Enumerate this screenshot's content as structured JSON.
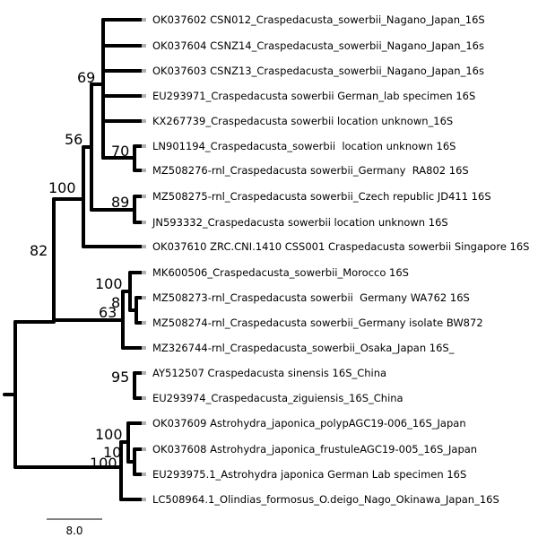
{
  "tree": {
    "leaves": [
      "OK037602 CSN012_Craspedacusta_sowerbii_Nagano_Japan_16S",
      "OK037604 CSNZ14_Craspedacusta_sowerbii_Nagano_Japan_16s",
      "OK037603 CSNZ13_Craspedacusta_sowerbii_Nagano_Japan_16s",
      "EU293971_Craspedacusta sowerbii German_lab specimen 16S",
      "KX267739_Craspedacusta sowerbii location unknown_16S",
      "LN901194_Craspedacusta_sowerbii  location unknown 16S",
      "MZ508276-rnl_Craspedacusta sowerbii_Germany  RA802 16S",
      "MZ508275-rnl_Craspedacusta sowerbii_Czech republic JD411 16S",
      "JN593332_Craspedacusta sowerbii location unknown 16S",
      "OK037610 ZRC.CNI.1410 CSS001 Craspedacusta sowerbii Singapore 16S",
      "MK600506_Craspedacusta_sowerbii_Morocco 16S",
      "MZ508273-rnl_Craspedacusta sowerbii  Germany WA762 16S",
      "MZ508274-rnl_Craspedacusta sowerbii_Germany isolate BW872",
      "MZ326744-rnl_Craspedacusta_sowerbii_Osaka_Japan 16S_",
      "AY512507 Craspedacusta sinensis 16S_China",
      "EU293974_Craspedacusta_ziguiensis_16S_China",
      "OK037609 Astrohydra_japonica_polypAGC19-006_16S_Japan",
      "OK037608 Astrohydra_japonica_frustuleAGC19-005_16S_Japan",
      "EU293975.1_Astrohydra japonica German Lab specimen 16S",
      "LC508964.1_Olindias_formosus_O.deigo_Nago_Okinawa_Japan_16S"
    ],
    "supports": {
      "s69": "69",
      "s70": "70",
      "s56": "56",
      "s89": "89",
      "s100a": "100",
      "s82": "82",
      "s100b": "100",
      "s8": "8",
      "s63": "63",
      "s95": "95",
      "s100c": "100",
      "s10": "10",
      "s100d": "100"
    },
    "scale_label": "8.0"
  }
}
